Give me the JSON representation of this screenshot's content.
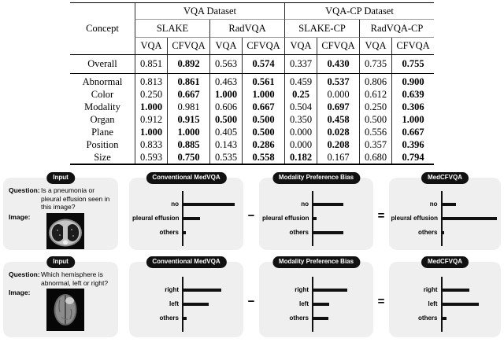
{
  "table": {
    "concept_label": "Concept",
    "groups": [
      "VQA Dataset",
      "VQA-CP Dataset"
    ],
    "datasets": [
      "SLAKE",
      "RadVQA",
      "SLAKE-CP",
      "RadVQA-CP"
    ],
    "method_cols": [
      "VQA",
      "CFVQA",
      "VQA",
      "CFVQA",
      "VQA",
      "CFVQA",
      "VQA",
      "CFVQA"
    ],
    "rows": [
      {
        "label": "Overall",
        "cells": [
          {
            "v": "0.851",
            "b": false
          },
          {
            "v": "0.892",
            "b": true
          },
          {
            "v": "0.563",
            "b": false
          },
          {
            "v": "0.574",
            "b": true
          },
          {
            "v": "0.337",
            "b": false
          },
          {
            "v": "0.430",
            "b": true
          },
          {
            "v": "0.735",
            "b": false
          },
          {
            "v": "0.755",
            "b": true
          }
        ]
      },
      {
        "label": "Abnormal",
        "cells": [
          {
            "v": "0.813",
            "b": false
          },
          {
            "v": "0.861",
            "b": true
          },
          {
            "v": "0.463",
            "b": false
          },
          {
            "v": "0.561",
            "b": true
          },
          {
            "v": "0.459",
            "b": false
          },
          {
            "v": "0.537",
            "b": true
          },
          {
            "v": "0.806",
            "b": false
          },
          {
            "v": "0.900",
            "b": true
          }
        ]
      },
      {
        "label": "Color",
        "cells": [
          {
            "v": "0.250",
            "b": false
          },
          {
            "v": "0.667",
            "b": true
          },
          {
            "v": "1.000",
            "b": true
          },
          {
            "v": "1.000",
            "b": true
          },
          {
            "v": "0.25",
            "b": true
          },
          {
            "v": "0.000",
            "b": false
          },
          {
            "v": "0.612",
            "b": false
          },
          {
            "v": "0.639",
            "b": true
          }
        ]
      },
      {
        "label": "Modality",
        "cells": [
          {
            "v": "1.000",
            "b": true
          },
          {
            "v": "0.981",
            "b": false
          },
          {
            "v": "0.606",
            "b": false
          },
          {
            "v": "0.667",
            "b": true
          },
          {
            "v": "0.504",
            "b": false
          },
          {
            "v": "0.697",
            "b": true
          },
          {
            "v": "0.250",
            "b": false
          },
          {
            "v": "0.306",
            "b": true
          }
        ]
      },
      {
        "label": "Organ",
        "cells": [
          {
            "v": "0.912",
            "b": false
          },
          {
            "v": "0.915",
            "b": true
          },
          {
            "v": "0.500",
            "b": true
          },
          {
            "v": "0.500",
            "b": true
          },
          {
            "v": "0.350",
            "b": false
          },
          {
            "v": "0.458",
            "b": true
          },
          {
            "v": "0.500",
            "b": false
          },
          {
            "v": "1.000",
            "b": true
          }
        ]
      },
      {
        "label": "Plane",
        "cells": [
          {
            "v": "1.000",
            "b": true
          },
          {
            "v": "1.000",
            "b": true
          },
          {
            "v": "0.405",
            "b": false
          },
          {
            "v": "0.500",
            "b": true
          },
          {
            "v": "0.000",
            "b": false
          },
          {
            "v": "0.028",
            "b": true
          },
          {
            "v": "0.556",
            "b": false
          },
          {
            "v": "0.667",
            "b": true
          }
        ]
      },
      {
        "label": "Position",
        "cells": [
          {
            "v": "0.833",
            "b": false
          },
          {
            "v": "0.885",
            "b": true
          },
          {
            "v": "0.143",
            "b": false
          },
          {
            "v": "0.286",
            "b": true
          },
          {
            "v": "0.000",
            "b": false
          },
          {
            "v": "0.208",
            "b": true
          },
          {
            "v": "0.357",
            "b": false
          },
          {
            "v": "0.396",
            "b": true
          }
        ]
      },
      {
        "label": "Size",
        "cells": [
          {
            "v": "0.593",
            "b": false
          },
          {
            "v": "0.750",
            "b": true
          },
          {
            "v": "0.535",
            "b": false
          },
          {
            "v": "0.558",
            "b": true
          },
          {
            "v": "0.182",
            "b": true
          },
          {
            "v": "0.167",
            "b": false
          },
          {
            "v": "0.680",
            "b": false
          },
          {
            "v": "0.794",
            "b": true
          }
        ]
      }
    ]
  },
  "figure": {
    "operators": {
      "minus": "−",
      "equals": "="
    },
    "rows": [
      {
        "input": {
          "badge": "Input",
          "question_label": "Question:",
          "question": "Is a pneumonia or pleural effusion seen in this image?",
          "image_label": "Image:",
          "image": "chest-ct"
        },
        "charts": [
          {
            "badge": "Conventional MedVQA",
            "labels": [
              "no",
              "pleural effusion",
              "others"
            ],
            "values": [
              0.9,
              0.29,
              0.04
            ]
          },
          {
            "badge": "Modality Preference Bias",
            "labels": [
              "no",
              "pleural effusion",
              "others"
            ],
            "values": [
              0.53,
              0.06,
              0.53
            ]
          },
          {
            "badge": "MedCFVQA",
            "labels": [
              "no",
              "pleural effusion",
              "others"
            ],
            "values": [
              0.24,
              0.97,
              0.04
            ]
          }
        ]
      },
      {
        "input": {
          "badge": "Input",
          "question_label": "Question:",
          "question": "Which hemisphere is abnormal, left or right?",
          "image_label": "Image:",
          "image": "brain-mri"
        },
        "charts": [
          {
            "badge": "Conventional MedVQA",
            "labels": [
              "right",
              "left",
              "others"
            ],
            "values": [
              0.66,
              0.45,
              0.05
            ]
          },
          {
            "badge": "Modality Preference Bias",
            "labels": [
              "right",
              "left",
              "others"
            ],
            "values": [
              0.6,
              0.28,
              0.27
            ]
          },
          {
            "badge": "MedCFVQA",
            "labels": [
              "right",
              "left",
              "others"
            ],
            "values": [
              0.48,
              0.65,
              0.08
            ]
          }
        ]
      }
    ]
  },
  "colors": {
    "panel_bg": "#efefef",
    "badge_bg": "#111111",
    "bar": "#111111",
    "text": "#000000"
  },
  "chart_data": [
    {
      "type": "bar",
      "title": "Conventional MedVQA",
      "example": 1,
      "categories": [
        "no",
        "pleural effusion",
        "others"
      ],
      "values": [
        0.9,
        0.29,
        0.04
      ],
      "xlabel": "",
      "ylabel": "",
      "note": "horizontal bars, axis unlabeled; values are relative lengths"
    },
    {
      "type": "bar",
      "title": "Modality Preference Bias",
      "example": 1,
      "categories": [
        "no",
        "pleural effusion",
        "others"
      ],
      "values": [
        0.53,
        0.06,
        0.53
      ],
      "xlabel": "",
      "ylabel": ""
    },
    {
      "type": "bar",
      "title": "MedCFVQA",
      "example": 1,
      "categories": [
        "no",
        "pleural effusion",
        "others"
      ],
      "values": [
        0.24,
        0.97,
        0.04
      ],
      "xlabel": "",
      "ylabel": ""
    },
    {
      "type": "bar",
      "title": "Conventional MedVQA",
      "example": 2,
      "categories": [
        "right",
        "left",
        "others"
      ],
      "values": [
        0.66,
        0.45,
        0.05
      ],
      "xlabel": "",
      "ylabel": ""
    },
    {
      "type": "bar",
      "title": "Modality Preference Bias",
      "example": 2,
      "categories": [
        "right",
        "left",
        "others"
      ],
      "values": [
        0.6,
        0.28,
        0.27
      ],
      "xlabel": "",
      "ylabel": ""
    },
    {
      "type": "bar",
      "title": "MedCFVQA",
      "example": 2,
      "categories": [
        "right",
        "left",
        "others"
      ],
      "values": [
        0.48,
        0.65,
        0.08
      ],
      "xlabel": "",
      "ylabel": ""
    }
  ]
}
